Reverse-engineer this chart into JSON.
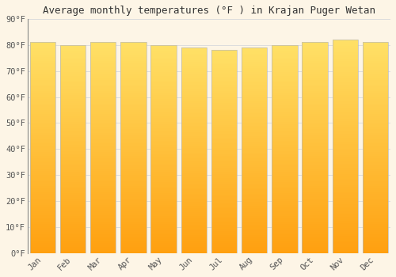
{
  "title": "Average monthly temperatures (°F ) in Krajan Puger Wetan",
  "months": [
    "Jan",
    "Feb",
    "Mar",
    "Apr",
    "May",
    "Jun",
    "Jul",
    "Aug",
    "Sep",
    "Oct",
    "Nov",
    "Dec"
  ],
  "values": [
    81,
    80,
    81,
    81,
    80,
    79,
    78,
    79,
    80,
    81,
    82,
    81
  ],
  "bar_color_top": "#FFE066",
  "bar_color_bottom": "#FFA010",
  "bar_color_edge": "#BBBBBB",
  "ylim": [
    0,
    90
  ],
  "yticks": [
    0,
    10,
    20,
    30,
    40,
    50,
    60,
    70,
    80,
    90
  ],
  "ytick_labels": [
    "0°F",
    "10°F",
    "20°F",
    "30°F",
    "40°F",
    "50°F",
    "60°F",
    "70°F",
    "80°F",
    "90°F"
  ],
  "bg_color": "#FDF5E6",
  "grid_color": "#DDDDDD",
  "title_fontsize": 9,
  "tick_fontsize": 7.5,
  "bar_width": 0.85
}
